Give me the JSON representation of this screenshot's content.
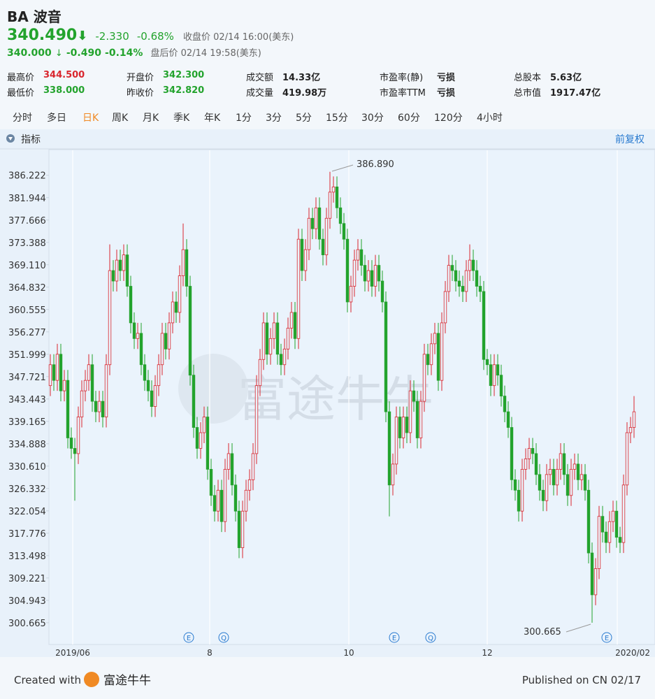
{
  "header": {
    "symbol": "BA",
    "name": "波音",
    "price": "340.490",
    "arrow": "⬇",
    "change": "-2.330",
    "change_pct": "-0.68%",
    "status": "收盘价 02/14 16:00(美东)",
    "after_price": "340.000",
    "after_arrow": "↓",
    "after_change": "-0.490",
    "after_pct": "-0.14%",
    "after_status": "盘后价 02/14 19:58(美东)"
  },
  "stats": [
    [
      "最高价",
      "344.500"
    ],
    [
      "开盘价",
      "342.300"
    ],
    [
      "成交额",
      "14.33亿"
    ],
    [
      "市盈率(静)",
      "亏损"
    ],
    [
      "总股本",
      "5.63亿"
    ],
    [
      "最低价",
      "338.000"
    ],
    [
      "昨收价",
      "342.820"
    ],
    [
      "成交量",
      "419.98万"
    ],
    [
      "市盈率TTM",
      "亏损"
    ],
    [
      "总市值",
      "1917.47亿"
    ]
  ],
  "tabs": [
    "分时",
    "多日",
    "日K",
    "周K",
    "月K",
    "季K",
    "年K",
    "1分",
    "3分",
    "5分",
    "15分",
    "30分",
    "60分",
    "120分",
    "4小时"
  ],
  "indicator": "指标",
  "adjust": "前复权",
  "watermark": "富途牛牛",
  "events": [
    "E",
    "Q",
    "E",
    "Q",
    "E"
  ],
  "footer": {
    "created": "Created with",
    "brand": "富途牛牛",
    "published": "Published on CN 02/17"
  },
  "chart_data": {
    "type": "candlestick",
    "up_color": "#d9262e",
    "down_color": "#23a32d",
    "max_label": "386.890",
    "min_label": "300.665",
    "xlim": [
      0,
      167
    ],
    "xticks": [
      {
        "value": 6.4,
        "label": "2019/06"
      },
      {
        "value": 45.6,
        "label": "8"
      },
      {
        "value": 85.4,
        "label": "10"
      },
      {
        "value": 125,
        "label": "12"
      },
      {
        "value": 162.2,
        "label": "2020/02"
      }
    ],
    "ylim": [
      296.5,
      391.0
    ],
    "yticks": [
      386.222,
      381.944,
      377.666,
      373.388,
      {
        "value": 369.11,
        "label": "369.110"
      },
      364.832,
      360.555,
      356.277,
      351.999,
      347.721,
      343.443,
      339.165,
      334.888,
      {
        "value": 330.61,
        "label": "330.610"
      },
      326.332,
      322.054,
      317.776,
      313.498,
      309.221,
      304.943,
      300.665
    ],
    "open": [
      346,
      350,
      347,
      352,
      345,
      347,
      336,
      334,
      333,
      340,
      345,
      347,
      350,
      343,
      341,
      343,
      340,
      350,
      368,
      366,
      370,
      368,
      371,
      365,
      358,
      355,
      356,
      350,
      347,
      345,
      342,
      346,
      350,
      356,
      353,
      358,
      362,
      360,
      367,
      372,
      365,
      348,
      338,
      334,
      337,
      340,
      330,
      325,
      322,
      326,
      320,
      330,
      333,
      327,
      322,
      315,
      322,
      326,
      328,
      333,
      346,
      351,
      358,
      352,
      355,
      358,
      352,
      350,
      353,
      357,
      360,
      355,
      374,
      368,
      372,
      378,
      376,
      380,
      374,
      371,
      378,
      383,
      384,
      380,
      377,
      374,
      362,
      365,
      370,
      372,
      369,
      366,
      368,
      365,
      369,
      366,
      362,
      341,
      327,
      331,
      340,
      336,
      340,
      337,
      345,
      343,
      336,
      343,
      352,
      350,
      354,
      356,
      347,
      358,
      364,
      369,
      368,
      366,
      365,
      364,
      368,
      370,
      368,
      365,
      364,
      351,
      350,
      346,
      350,
      348,
      344,
      341,
      338,
      328,
      326,
      322,
      330,
      332,
      334,
      333,
      329,
      326,
      324,
      329,
      330,
      327,
      330,
      333,
      329,
      325,
      330,
      331,
      328,
      329,
      326,
      314,
      306,
      311,
      321,
      318,
      316,
      320,
      322,
      317,
      316,
      327,
      337,
      338
    ],
    "high": [
      352,
      352,
      354,
      354,
      349,
      349,
      338,
      336,
      342,
      347,
      349,
      352,
      352,
      345,
      345,
      345,
      352,
      373,
      370,
      372,
      372,
      373,
      373,
      367,
      360,
      358,
      358,
      352,
      349,
      347,
      348,
      352,
      358,
      358,
      360,
      364,
      364,
      369,
      377,
      374,
      367,
      350,
      340,
      339,
      342,
      342,
      332,
      327,
      328,
      328,
      332,
      335,
      335,
      329,
      324,
      324,
      328,
      330,
      335,
      348,
      353,
      360,
      360,
      357,
      360,
      360,
      354,
      355,
      359,
      362,
      362,
      376,
      376,
      374,
      380,
      380,
      382,
      382,
      376,
      380,
      386.89,
      386,
      386,
      382,
      379,
      376,
      367,
      372,
      374,
      374,
      371,
      370,
      370,
      371,
      371,
      368,
      364,
      343,
      333,
      342,
      342,
      342,
      342,
      347,
      347,
      345,
      345,
      354,
      354,
      356,
      358,
      358,
      360,
      366,
      371,
      371,
      370,
      368,
      367,
      370,
      373,
      372,
      370,
      367,
      366,
      353,
      352,
      352,
      352,
      350,
      346,
      343,
      340,
      330,
      328,
      332,
      334,
      336,
      336,
      335,
      331,
      328,
      331,
      332,
      332,
      332,
      335,
      335,
      331,
      332,
      333,
      333,
      331,
      331,
      328,
      316,
      313,
      323,
      323,
      320,
      322,
      324,
      324,
      319,
      329,
      339,
      340,
      344
    ],
    "low": [
      344,
      345,
      345,
      343,
      343,
      334,
      332,
      324,
      331,
      338,
      343,
      345,
      341,
      339,
      339,
      338,
      338,
      348,
      364,
      364,
      366,
      366,
      363,
      356,
      353,
      353,
      348,
      345,
      343,
      340,
      340,
      344,
      348,
      351,
      351,
      356,
      358,
      358,
      365,
      363,
      346,
      336,
      332,
      332,
      335,
      328,
      323,
      320,
      320,
      318,
      318,
      328,
      325,
      320,
      313,
      313,
      320,
      324,
      326,
      331,
      344,
      349,
      350,
      350,
      353,
      350,
      348,
      348,
      351,
      355,
      353,
      353,
      366,
      366,
      370,
      374,
      374,
      372,
      369,
      369,
      376,
      381,
      378,
      375,
      372,
      360,
      360,
      363,
      368,
      367,
      364,
      364,
      363,
      363,
      364,
      360,
      339,
      321,
      325,
      329,
      334,
      334,
      335,
      335,
      341,
      334,
      334,
      341,
      348,
      348,
      352,
      345,
      345,
      356,
      362,
      366,
      364,
      363,
      362,
      362,
      366,
      366,
      363,
      362,
      349,
      348,
      344,
      344,
      346,
      342,
      339,
      336,
      326,
      324,
      320,
      320,
      328,
      330,
      331,
      327,
      324,
      322,
      322,
      327,
      325,
      325,
      328,
      327,
      323,
      323,
      328,
      326,
      326,
      324,
      312,
      300.665,
      304,
      309,
      316,
      314,
      314,
      318,
      315,
      314,
      314,
      325,
      335,
      336
    ],
    "close": [
      350,
      347,
      352,
      345,
      347,
      336,
      334,
      333,
      340,
      345,
      347,
      350,
      343,
      341,
      343,
      340,
      350,
      368,
      366,
      370,
      368,
      371,
      365,
      358,
      355,
      356,
      350,
      347,
      345,
      342,
      346,
      350,
      356,
      353,
      358,
      362,
      360,
      367,
      372,
      365,
      348,
      338,
      334,
      337,
      340,
      330,
      325,
      322,
      326,
      320,
      330,
      333,
      327,
      322,
      315,
      322,
      326,
      328,
      333,
      346,
      351,
      358,
      352,
      355,
      358,
      352,
      350,
      353,
      357,
      360,
      355,
      374,
      368,
      372,
      378,
      376,
      380,
      374,
      371,
      378,
      383,
      384,
      380,
      377,
      374,
      362,
      365,
      370,
      372,
      369,
      366,
      368,
      365,
      369,
      366,
      362,
      341,
      327,
      331,
      340,
      336,
      340,
      337,
      345,
      343,
      336,
      343,
      352,
      350,
      354,
      356,
      347,
      358,
      364,
      369,
      368,
      366,
      365,
      364,
      368,
      370,
      368,
      365,
      364,
      351,
      350,
      346,
      350,
      348,
      344,
      341,
      338,
      328,
      326,
      322,
      330,
      332,
      334,
      333,
      329,
      326,
      324,
      329,
      330,
      327,
      330,
      333,
      329,
      325,
      330,
      331,
      328,
      329,
      326,
      314,
      306,
      311,
      321,
      318,
      316,
      320,
      322,
      317,
      316,
      327,
      337,
      338,
      341
    ]
  }
}
